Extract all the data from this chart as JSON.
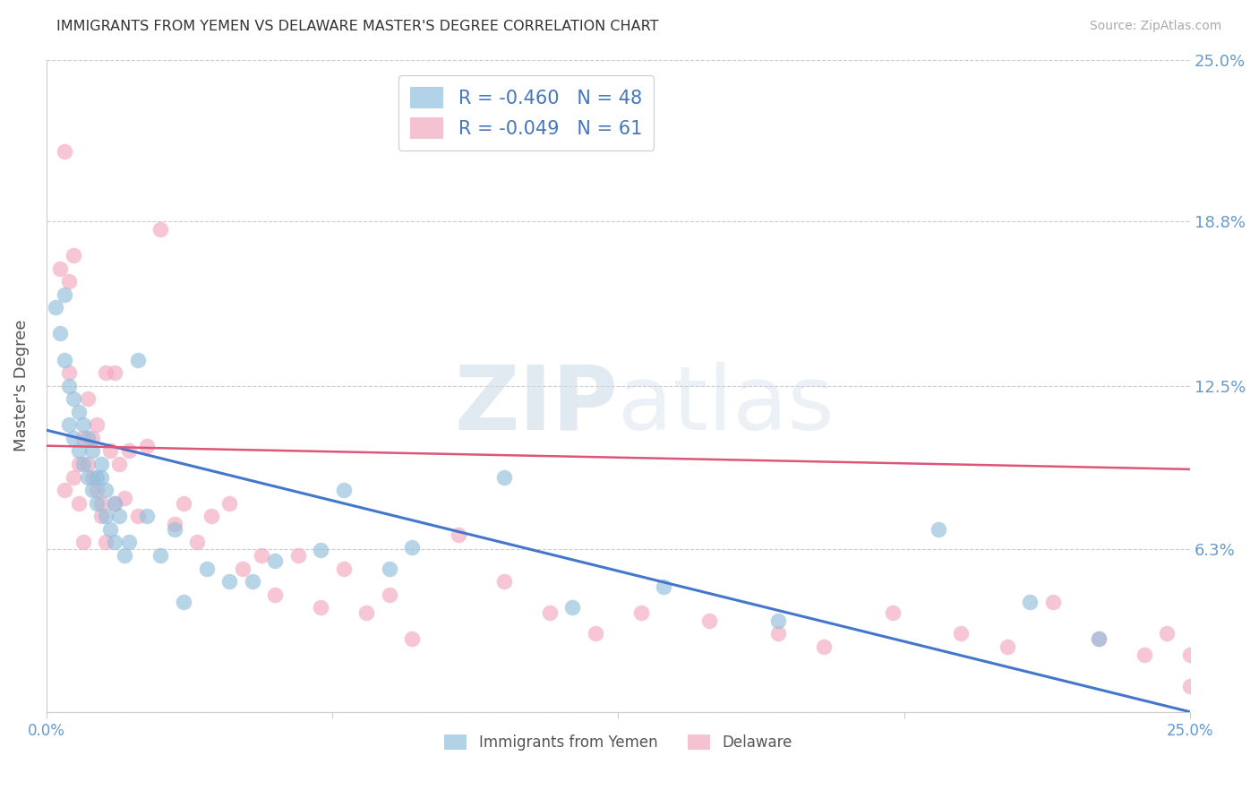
{
  "title": "IMMIGRANTS FROM YEMEN VS DELAWARE MASTER'S DEGREE CORRELATION CHART",
  "source": "Source: ZipAtlas.com",
  "ylabel": "Master's Degree",
  "xmin": 0.0,
  "xmax": 0.25,
  "ymin": 0.0,
  "ymax": 0.25,
  "yticks": [
    0.0,
    0.0625,
    0.125,
    0.188,
    0.25
  ],
  "ytick_labels": [
    "",
    "",
    "",
    "",
    ""
  ],
  "xticks": [
    0.0,
    0.0625,
    0.125,
    0.1875,
    0.25
  ],
  "xtick_labels": [
    "0.0%",
    "",
    "",
    "",
    "25.0%"
  ],
  "right_yticks": [
    0.0,
    0.0625,
    0.125,
    0.188,
    0.25
  ],
  "right_ytick_labels": [
    "",
    "6.3%",
    "12.5%",
    "18.8%",
    "25.0%"
  ],
  "watermark": "ZIPatlas",
  "blue_color": "#92bfdd",
  "pink_color": "#f2a8be",
  "tick_label_color": "#6699cc",
  "right_tick_color": "#6699cc",
  "grid_color": "#cccccc",
  "title_color": "#333333",
  "blue_series": {
    "x": [
      0.002,
      0.003,
      0.004,
      0.004,
      0.005,
      0.005,
      0.006,
      0.006,
      0.007,
      0.007,
      0.008,
      0.008,
      0.009,
      0.009,
      0.01,
      0.01,
      0.011,
      0.011,
      0.012,
      0.012,
      0.013,
      0.013,
      0.014,
      0.015,
      0.015,
      0.016,
      0.017,
      0.018,
      0.02,
      0.022,
      0.025,
      0.028,
      0.03,
      0.035,
      0.04,
      0.045,
      0.05,
      0.06,
      0.065,
      0.075,
      0.08,
      0.1,
      0.115,
      0.135,
      0.16,
      0.195,
      0.215,
      0.23
    ],
    "y": [
      0.155,
      0.145,
      0.16,
      0.135,
      0.11,
      0.125,
      0.105,
      0.12,
      0.1,
      0.115,
      0.11,
      0.095,
      0.105,
      0.09,
      0.1,
      0.085,
      0.09,
      0.08,
      0.09,
      0.095,
      0.085,
      0.075,
      0.07,
      0.065,
      0.08,
      0.075,
      0.06,
      0.065,
      0.135,
      0.075,
      0.06,
      0.07,
      0.042,
      0.055,
      0.05,
      0.05,
      0.058,
      0.062,
      0.085,
      0.055,
      0.063,
      0.09,
      0.04,
      0.048,
      0.035,
      0.07,
      0.042,
      0.028
    ],
    "R": -0.46,
    "N": 48,
    "line_x0": 0.0,
    "line_y0": 0.108,
    "line_x1": 0.25,
    "line_y1": 0.0
  },
  "pink_series": {
    "x": [
      0.003,
      0.004,
      0.004,
      0.005,
      0.005,
      0.006,
      0.006,
      0.007,
      0.007,
      0.008,
      0.008,
      0.009,
      0.009,
      0.01,
      0.01,
      0.011,
      0.011,
      0.012,
      0.012,
      0.013,
      0.013,
      0.014,
      0.015,
      0.015,
      0.016,
      0.017,
      0.018,
      0.02,
      0.022,
      0.025,
      0.028,
      0.03,
      0.033,
      0.036,
      0.04,
      0.043,
      0.047,
      0.05,
      0.055,
      0.06,
      0.065,
      0.07,
      0.075,
      0.08,
      0.09,
      0.1,
      0.11,
      0.12,
      0.13,
      0.145,
      0.16,
      0.17,
      0.185,
      0.2,
      0.21,
      0.22,
      0.23,
      0.24,
      0.245,
      0.25,
      0.25
    ],
    "y": [
      0.17,
      0.085,
      0.215,
      0.13,
      0.165,
      0.175,
      0.09,
      0.08,
      0.095,
      0.105,
      0.065,
      0.12,
      0.095,
      0.105,
      0.09,
      0.11,
      0.085,
      0.075,
      0.08,
      0.13,
      0.065,
      0.1,
      0.08,
      0.13,
      0.095,
      0.082,
      0.1,
      0.075,
      0.102,
      0.185,
      0.072,
      0.08,
      0.065,
      0.075,
      0.08,
      0.055,
      0.06,
      0.045,
      0.06,
      0.04,
      0.055,
      0.038,
      0.045,
      0.028,
      0.068,
      0.05,
      0.038,
      0.03,
      0.038,
      0.035,
      0.03,
      0.025,
      0.038,
      0.03,
      0.025,
      0.042,
      0.028,
      0.022,
      0.03,
      0.022,
      0.01
    ],
    "R": -0.049,
    "N": 61,
    "line_x0": 0.0,
    "line_y0": 0.102,
    "line_x1": 0.25,
    "line_y1": 0.093
  },
  "legend_label_blue": "Immigrants from Yemen",
  "legend_label_pink": "Delaware",
  "legend_text_color": "#4477bb"
}
